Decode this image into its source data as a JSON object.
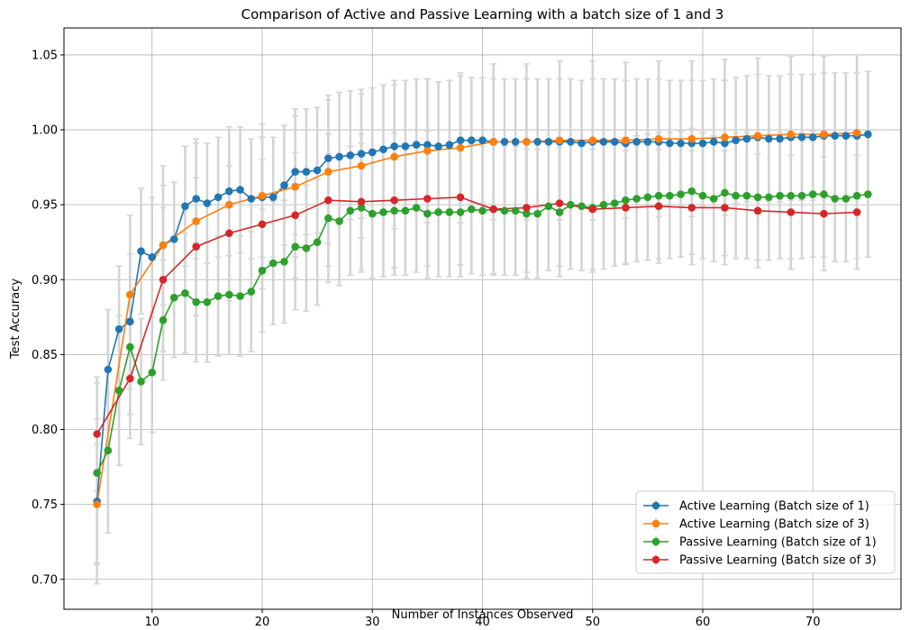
{
  "chart_data": {
    "type": "line",
    "title": "Comparison of Active and Passive Learning with a batch size of 1 and 3",
    "xlabel": "Number of Instances Observed",
    "ylabel": "Test Accuracy",
    "xlim": [
      2,
      78
    ],
    "ylim": [
      0.68,
      1.068
    ],
    "xticks": [
      10,
      20,
      30,
      40,
      50,
      60,
      70
    ],
    "yticks": [
      0.7,
      0.75,
      0.8,
      0.85,
      0.9,
      0.95,
      1.0,
      1.05
    ],
    "grid": true,
    "legend_position": "lower-right",
    "error_bar_color": "#d3d3d3",
    "series": [
      {
        "name": "Active Learning (Batch size of 1)",
        "color": "#1f77b4",
        "x": [
          5,
          6,
          7,
          8,
          9,
          10,
          11,
          12,
          13,
          14,
          15,
          16,
          17,
          18,
          19,
          20,
          21,
          22,
          23,
          24,
          25,
          26,
          27,
          28,
          29,
          30,
          31,
          32,
          33,
          34,
          35,
          36,
          37,
          38,
          39,
          40,
          41,
          42,
          43,
          44,
          45,
          46,
          47,
          48,
          49,
          50,
          51,
          52,
          53,
          54,
          55,
          56,
          57,
          58,
          59,
          60,
          61,
          62,
          63,
          64,
          65,
          66,
          67,
          68,
          69,
          70,
          71,
          72,
          73,
          74,
          75
        ],
        "y": [
          0.752,
          0.84,
          0.867,
          0.872,
          0.919,
          0.915,
          0.923,
          0.927,
          0.949,
          0.954,
          0.951,
          0.955,
          0.959,
          0.96,
          0.954,
          0.955,
          0.955,
          0.963,
          0.972,
          0.972,
          0.973,
          0.981,
          0.982,
          0.983,
          0.984,
          0.985,
          0.987,
          0.989,
          0.989,
          0.99,
          0.99,
          0.989,
          0.99,
          0.993,
          0.993,
          0.993,
          0.992,
          0.992,
          0.992,
          0.992,
          0.992,
          0.992,
          0.992,
          0.992,
          0.991,
          0.992,
          0.992,
          0.992,
          0.991,
          0.992,
          0.992,
          0.992,
          0.991,
          0.991,
          0.991,
          0.991,
          0.992,
          0.991,
          0.993,
          0.994,
          0.995,
          0.994,
          0.994,
          0.995,
          0.995,
          0.995,
          0.996,
          0.996,
          0.996,
          0.996,
          0.997
        ],
        "err": [
          0.055,
          0.04,
          0.042,
          0.045,
          0.042,
          0.04,
          0.04,
          0.038,
          0.04,
          0.04,
          0.04,
          0.04,
          0.043,
          0.042,
          0.04,
          0.04,
          0.04,
          0.04,
          0.042,
          0.042,
          0.042,
          0.042,
          0.043,
          0.043,
          0.043,
          0.043,
          0.043,
          0.044,
          0.044,
          0.044,
          0.044,
          0.043,
          0.043,
          0.043,
          0.042,
          0.042,
          0.042,
          0.042,
          0.042,
          0.042,
          0.042,
          0.042,
          0.042,
          0.042,
          0.042,
          0.042,
          0.042,
          0.042,
          0.042,
          0.042,
          0.042,
          0.042,
          0.042,
          0.042,
          0.042,
          0.042,
          0.042,
          0.042,
          0.042,
          0.042,
          0.042,
          0.042,
          0.042,
          0.042,
          0.042,
          0.042,
          0.042,
          0.042,
          0.042,
          0.042,
          0.042
        ]
      },
      {
        "name": "Active Learning (Batch size of 3)",
        "color": "#ff7f0e",
        "x": [
          5,
          8,
          11,
          14,
          17,
          20,
          23,
          26,
          29,
          32,
          35,
          38,
          41,
          44,
          47,
          50,
          53,
          56,
          59,
          62,
          65,
          68,
          71,
          74
        ],
        "y": [
          0.75,
          0.89,
          0.923,
          0.939,
          0.95,
          0.956,
          0.962,
          0.972,
          0.976,
          0.982,
          0.986,
          0.988,
          0.992,
          0.992,
          0.993,
          0.993,
          0.993,
          0.994,
          0.994,
          0.995,
          0.996,
          0.997,
          0.997,
          0.998
        ],
        "err": [
          0.04,
          0.053,
          0.053,
          0.052,
          0.05,
          0.048,
          0.047,
          0.048,
          0.048,
          0.048,
          0.048,
          0.05,
          0.052,
          0.052,
          0.053,
          0.053,
          0.052,
          0.052,
          0.052,
          0.052,
          0.052,
          0.052,
          0.052,
          0.052
        ]
      },
      {
        "name": "Passive Learning (Batch size of 1)",
        "color": "#2ca02c",
        "x": [
          5,
          6,
          7,
          8,
          9,
          10,
          11,
          12,
          13,
          14,
          15,
          16,
          17,
          18,
          19,
          20,
          21,
          22,
          23,
          24,
          25,
          26,
          27,
          28,
          29,
          30,
          31,
          32,
          33,
          34,
          35,
          36,
          37,
          38,
          39,
          40,
          41,
          42,
          43,
          44,
          45,
          46,
          47,
          48,
          49,
          50,
          51,
          52,
          53,
          54,
          55,
          56,
          57,
          58,
          59,
          60,
          61,
          62,
          63,
          64,
          65,
          66,
          67,
          68,
          69,
          70,
          71,
          72,
          73,
          74,
          75
        ],
        "y": [
          0.771,
          0.786,
          0.826,
          0.855,
          0.832,
          0.838,
          0.873,
          0.888,
          0.891,
          0.885,
          0.885,
          0.889,
          0.89,
          0.889,
          0.892,
          0.906,
          0.911,
          0.912,
          0.922,
          0.921,
          0.925,
          0.941,
          0.939,
          0.946,
          0.948,
          0.944,
          0.945,
          0.946,
          0.946,
          0.948,
          0.944,
          0.945,
          0.945,
          0.945,
          0.947,
          0.946,
          0.947,
          0.946,
          0.946,
          0.944,
          0.944,
          0.949,
          0.945,
          0.95,
          0.949,
          0.948,
          0.95,
          0.951,
          0.953,
          0.954,
          0.955,
          0.956,
          0.956,
          0.957,
          0.959,
          0.956,
          0.954,
          0.958,
          0.956,
          0.956,
          0.955,
          0.955,
          0.956,
          0.956,
          0.956,
          0.957,
          0.957,
          0.954,
          0.954,
          0.956,
          0.957
        ],
        "err": [
          0.06,
          0.055,
          0.05,
          0.045,
          0.042,
          0.04,
          0.04,
          0.04,
          0.04,
          0.04,
          0.04,
          0.04,
          0.04,
          0.04,
          0.04,
          0.041,
          0.041,
          0.041,
          0.042,
          0.042,
          0.042,
          0.043,
          0.043,
          0.043,
          0.043,
          0.043,
          0.043,
          0.043,
          0.043,
          0.043,
          0.043,
          0.043,
          0.043,
          0.043,
          0.043,
          0.043,
          0.043,
          0.043,
          0.043,
          0.043,
          0.043,
          0.043,
          0.043,
          0.043,
          0.043,
          0.043,
          0.043,
          0.042,
          0.042,
          0.042,
          0.042,
          0.042,
          0.042,
          0.042,
          0.042,
          0.042,
          0.042,
          0.042,
          0.042,
          0.042,
          0.042,
          0.042,
          0.042,
          0.042,
          0.042,
          0.042,
          0.042,
          0.042,
          0.042,
          0.042,
          0.042
        ]
      },
      {
        "name": "Passive Learning (Batch size of 3)",
        "color": "#d62728",
        "x": [
          5,
          8,
          11,
          14,
          17,
          20,
          23,
          26,
          29,
          32,
          35,
          38,
          41,
          44,
          47,
          50,
          53,
          56,
          59,
          62,
          65,
          68,
          71,
          74
        ],
        "y": [
          0.797,
          0.834,
          0.9,
          0.922,
          0.931,
          0.937,
          0.943,
          0.953,
          0.952,
          0.953,
          0.954,
          0.955,
          0.947,
          0.948,
          0.951,
          0.947,
          0.948,
          0.949,
          0.948,
          0.948,
          0.946,
          0.945,
          0.944,
          0.945
        ],
        "err": [
          0.038,
          0.04,
          0.048,
          0.046,
          0.045,
          0.043,
          0.042,
          0.044,
          0.045,
          0.045,
          0.045,
          0.045,
          0.044,
          0.043,
          0.042,
          0.04,
          0.038,
          0.038,
          0.038,
          0.038,
          0.038,
          0.038,
          0.038,
          0.038
        ]
      }
    ]
  }
}
